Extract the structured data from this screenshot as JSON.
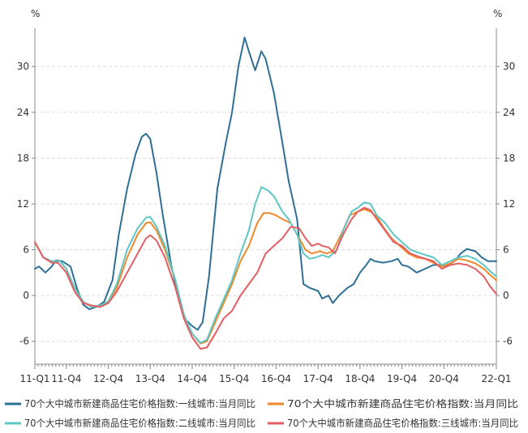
{
  "chart_data": {
    "type": "line",
    "title": "",
    "y_unit_left": "%",
    "y_unit_right": "%",
    "ylim": [
      -9,
      35
    ],
    "yticks": [
      -6,
      0,
      6,
      12,
      18,
      24,
      30
    ],
    "xlim": [
      2011.0,
      2022.0
    ],
    "xticks": [
      {
        "x": 2011.0,
        "label": "11-Q1"
      },
      {
        "x": 2011.75,
        "label": "11-Q4"
      },
      {
        "x": 2012.75,
        "label": "12-Q4"
      },
      {
        "x": 2013.75,
        "label": "13-Q4"
      },
      {
        "x": 2014.75,
        "label": "14-Q4"
      },
      {
        "x": 2015.75,
        "label": "15-Q4"
      },
      {
        "x": 2016.75,
        "label": "16-Q4"
      },
      {
        "x": 2017.75,
        "label": "17-Q4"
      },
      {
        "x": 2018.75,
        "label": "18-Q4"
      },
      {
        "x": 2019.75,
        "label": "19-Q4"
      },
      {
        "x": 2020.75,
        "label": "20-Q4"
      },
      {
        "x": 2022.0,
        "label": "22-Q1"
      }
    ],
    "grid": true,
    "legend_position": "bottom",
    "series": [
      {
        "name": "70个大中城市新建商品住宅价格指数:一线城市:当月同比",
        "color": "#2e6f96",
        "points": [
          [
            2011.0,
            3.5
          ],
          [
            2011.1,
            3.8
          ],
          [
            2011.25,
            3.0
          ],
          [
            2011.4,
            3.8
          ],
          [
            2011.5,
            4.6
          ],
          [
            2011.65,
            4.5
          ],
          [
            2011.85,
            3.8
          ],
          [
            2012.0,
            1.0
          ],
          [
            2012.15,
            -1.2
          ],
          [
            2012.3,
            -1.8
          ],
          [
            2012.5,
            -1.4
          ],
          [
            2012.65,
            -0.8
          ],
          [
            2012.85,
            2.0
          ],
          [
            2013.0,
            8.0
          ],
          [
            2013.2,
            14.0
          ],
          [
            2013.4,
            18.5
          ],
          [
            2013.55,
            20.8
          ],
          [
            2013.65,
            21.2
          ],
          [
            2013.75,
            20.5
          ],
          [
            2013.9,
            16.0
          ],
          [
            2014.05,
            10.5
          ],
          [
            2014.25,
            4.0
          ],
          [
            2014.45,
            -1.0
          ],
          [
            2014.6,
            -3.2
          ],
          [
            2014.75,
            -4.0
          ],
          [
            2014.88,
            -4.5
          ],
          [
            2015.0,
            -3.5
          ],
          [
            2015.15,
            2.5
          ],
          [
            2015.35,
            14.0
          ],
          [
            2015.55,
            20.0
          ],
          [
            2015.7,
            24.0
          ],
          [
            2015.85,
            30.0
          ],
          [
            2016.0,
            33.8
          ],
          [
            2016.1,
            32.0
          ],
          [
            2016.25,
            29.5
          ],
          [
            2016.4,
            32.0
          ],
          [
            2016.5,
            31.0
          ],
          [
            2016.7,
            26.5
          ],
          [
            2016.9,
            20.0
          ],
          [
            2017.05,
            15.0
          ],
          [
            2017.25,
            10.0
          ],
          [
            2017.4,
            1.5
          ],
          [
            2017.55,
            1.0
          ],
          [
            2017.75,
            0.6
          ],
          [
            2017.85,
            -0.4
          ],
          [
            2018.0,
            0.0
          ],
          [
            2018.1,
            -1.0
          ],
          [
            2018.25,
            0.0
          ],
          [
            2018.45,
            1.0
          ],
          [
            2018.6,
            1.5
          ],
          [
            2018.75,
            3.0
          ],
          [
            2018.9,
            4.0
          ],
          [
            2019.0,
            4.8
          ],
          [
            2019.1,
            4.5
          ],
          [
            2019.3,
            4.3
          ],
          [
            2019.5,
            4.5
          ],
          [
            2019.65,
            4.8
          ],
          [
            2019.75,
            4.0
          ],
          [
            2019.9,
            3.8
          ],
          [
            2020.1,
            3.0
          ],
          [
            2020.3,
            3.5
          ],
          [
            2020.5,
            4.0
          ],
          [
            2020.65,
            4.0
          ],
          [
            2020.8,
            3.8
          ],
          [
            2021.0,
            4.5
          ],
          [
            2021.15,
            5.5
          ],
          [
            2021.3,
            6.1
          ],
          [
            2021.5,
            5.8
          ],
          [
            2021.65,
            5.0
          ],
          [
            2021.8,
            4.5
          ],
          [
            2022.0,
            4.5
          ]
        ]
      },
      {
        "name": "70个大中城市新建商品住宅价格指数:当月同比",
        "color": "#f0882b",
        "points": [
          [
            2011.0,
            7.0
          ],
          [
            2011.2,
            5.0
          ],
          [
            2011.4,
            4.5
          ],
          [
            2011.6,
            4.5
          ],
          [
            2011.75,
            3.5
          ],
          [
            2011.95,
            1.0
          ],
          [
            2012.15,
            -0.8
          ],
          [
            2012.35,
            -1.5
          ],
          [
            2012.55,
            -1.3
          ],
          [
            2012.75,
            -0.8
          ],
          [
            2012.95,
            1.0
          ],
          [
            2013.2,
            5.0
          ],
          [
            2013.45,
            8.0
          ],
          [
            2013.65,
            9.5
          ],
          [
            2013.75,
            9.6
          ],
          [
            2013.9,
            8.5
          ],
          [
            2014.1,
            6.0
          ],
          [
            2014.35,
            2.0
          ],
          [
            2014.55,
            -2.5
          ],
          [
            2014.75,
            -5.0
          ],
          [
            2014.95,
            -6.3
          ],
          [
            2015.1,
            -6.0
          ],
          [
            2015.3,
            -3.5
          ],
          [
            2015.5,
            -1.0
          ],
          [
            2015.7,
            1.5
          ],
          [
            2015.9,
            4.5
          ],
          [
            2016.1,
            6.5
          ],
          [
            2016.3,
            9.5
          ],
          [
            2016.45,
            10.8
          ],
          [
            2016.6,
            10.8
          ],
          [
            2016.75,
            10.5
          ],
          [
            2016.9,
            10.0
          ],
          [
            2017.1,
            9.5
          ],
          [
            2017.3,
            7.5
          ],
          [
            2017.45,
            6.0
          ],
          [
            2017.6,
            5.5
          ],
          [
            2017.8,
            5.8
          ],
          [
            2017.95,
            5.5
          ],
          [
            2018.1,
            5.8
          ],
          [
            2018.3,
            8.0
          ],
          [
            2018.5,
            10.5
          ],
          [
            2018.7,
            11.0
          ],
          [
            2018.85,
            11.3
          ],
          [
            2019.0,
            11.0
          ],
          [
            2019.15,
            10.3
          ],
          [
            2019.3,
            9.0
          ],
          [
            2019.5,
            7.5
          ],
          [
            2019.7,
            6.5
          ],
          [
            2019.9,
            5.5
          ],
          [
            2020.1,
            5.0
          ],
          [
            2020.3,
            4.8
          ],
          [
            2020.5,
            4.3
          ],
          [
            2020.7,
            3.8
          ],
          [
            2020.9,
            4.2
          ],
          [
            2021.1,
            4.8
          ],
          [
            2021.3,
            4.6
          ],
          [
            2021.5,
            4.2
          ],
          [
            2021.7,
            3.5
          ],
          [
            2021.85,
            2.7
          ],
          [
            2022.0,
            2.0
          ]
        ]
      },
      {
        "name": "70个大中城市新建商品住宅价格指数:二线城市:当月同比",
        "color": "#5ec7c4",
        "points": [
          [
            2011.0,
            7.0
          ],
          [
            2011.2,
            5.0
          ],
          [
            2011.4,
            4.5
          ],
          [
            2011.6,
            4.5
          ],
          [
            2011.75,
            3.5
          ],
          [
            2011.95,
            1.0
          ],
          [
            2012.15,
            -0.8
          ],
          [
            2012.35,
            -1.5
          ],
          [
            2012.55,
            -1.3
          ],
          [
            2012.75,
            -0.8
          ],
          [
            2012.95,
            1.5
          ],
          [
            2013.2,
            6.0
          ],
          [
            2013.45,
            8.8
          ],
          [
            2013.65,
            10.2
          ],
          [
            2013.75,
            10.3
          ],
          [
            2013.9,
            9.0
          ],
          [
            2014.1,
            6.5
          ],
          [
            2014.35,
            2.0
          ],
          [
            2014.55,
            -2.5
          ],
          [
            2014.75,
            -5.0
          ],
          [
            2014.95,
            -6.2
          ],
          [
            2015.1,
            -5.8
          ],
          [
            2015.3,
            -3.0
          ],
          [
            2015.5,
            -0.5
          ],
          [
            2015.7,
            2.0
          ],
          [
            2015.9,
            5.5
          ],
          [
            2016.1,
            8.5
          ],
          [
            2016.25,
            12.0
          ],
          [
            2016.4,
            14.2
          ],
          [
            2016.55,
            13.8
          ],
          [
            2016.7,
            13.0
          ],
          [
            2016.9,
            11.0
          ],
          [
            2017.05,
            10.0
          ],
          [
            2017.25,
            8.0
          ],
          [
            2017.4,
            5.5
          ],
          [
            2017.55,
            4.8
          ],
          [
            2017.7,
            5.0
          ],
          [
            2017.85,
            5.3
          ],
          [
            2018.0,
            5.0
          ],
          [
            2018.2,
            6.0
          ],
          [
            2018.35,
            8.5
          ],
          [
            2018.55,
            11.0
          ],
          [
            2018.7,
            11.5
          ],
          [
            2018.85,
            12.2
          ],
          [
            2019.0,
            12.0
          ],
          [
            2019.15,
            10.5
          ],
          [
            2019.35,
            9.5
          ],
          [
            2019.55,
            8.0
          ],
          [
            2019.75,
            7.0
          ],
          [
            2019.95,
            6.0
          ],
          [
            2020.2,
            5.5
          ],
          [
            2020.5,
            5.0
          ],
          [
            2020.7,
            4.0
          ],
          [
            2020.9,
            4.5
          ],
          [
            2021.1,
            5.0
          ],
          [
            2021.3,
            5.2
          ],
          [
            2021.5,
            4.8
          ],
          [
            2021.7,
            4.0
          ],
          [
            2021.85,
            3.2
          ],
          [
            2022.0,
            2.5
          ]
        ]
      },
      {
        "name": "70个大中城市新建商品住宅价格指数:三线城市:当月同比",
        "color": "#e35e63",
        "points": [
          [
            2011.0,
            7.0
          ],
          [
            2011.2,
            5.0
          ],
          [
            2011.4,
            4.3
          ],
          [
            2011.55,
            4.3
          ],
          [
            2011.75,
            3.0
          ],
          [
            2011.95,
            0.5
          ],
          [
            2012.15,
            -1.0
          ],
          [
            2012.35,
            -1.3
          ],
          [
            2012.55,
            -1.5
          ],
          [
            2012.75,
            -1.0
          ],
          [
            2012.95,
            0.5
          ],
          [
            2013.2,
            3.0
          ],
          [
            2013.45,
            5.5
          ],
          [
            2013.65,
            7.5
          ],
          [
            2013.75,
            7.9
          ],
          [
            2013.9,
            7.2
          ],
          [
            2014.1,
            5.0
          ],
          [
            2014.35,
            1.0
          ],
          [
            2014.55,
            -3.0
          ],
          [
            2014.75,
            -5.5
          ],
          [
            2014.95,
            -7.0
          ],
          [
            2015.1,
            -6.8
          ],
          [
            2015.3,
            -5.0
          ],
          [
            2015.5,
            -3.0
          ],
          [
            2015.7,
            -2.0
          ],
          [
            2015.9,
            0.0
          ],
          [
            2016.1,
            1.5
          ],
          [
            2016.3,
            3.0
          ],
          [
            2016.5,
            5.5
          ],
          [
            2016.7,
            6.5
          ],
          [
            2016.9,
            7.5
          ],
          [
            2017.1,
            9.0
          ],
          [
            2017.3,
            8.8
          ],
          [
            2017.45,
            7.5
          ],
          [
            2017.6,
            6.5
          ],
          [
            2017.75,
            6.8
          ],
          [
            2017.85,
            6.5
          ],
          [
            2018.0,
            6.3
          ],
          [
            2018.15,
            5.5
          ],
          [
            2018.35,
            8.0
          ],
          [
            2018.55,
            10.0
          ],
          [
            2018.7,
            11.0
          ],
          [
            2018.85,
            11.5
          ],
          [
            2019.0,
            11.2
          ],
          [
            2019.15,
            10.0
          ],
          [
            2019.35,
            8.5
          ],
          [
            2019.55,
            7.0
          ],
          [
            2019.75,
            6.5
          ],
          [
            2019.95,
            5.5
          ],
          [
            2020.2,
            5.0
          ],
          [
            2020.5,
            4.5
          ],
          [
            2020.7,
            3.5
          ],
          [
            2020.9,
            4.0
          ],
          [
            2021.1,
            4.2
          ],
          [
            2021.3,
            4.0
          ],
          [
            2021.5,
            3.5
          ],
          [
            2021.7,
            2.5
          ],
          [
            2021.85,
            1.2
          ],
          [
            2022.0,
            0.2
          ]
        ]
      }
    ]
  }
}
